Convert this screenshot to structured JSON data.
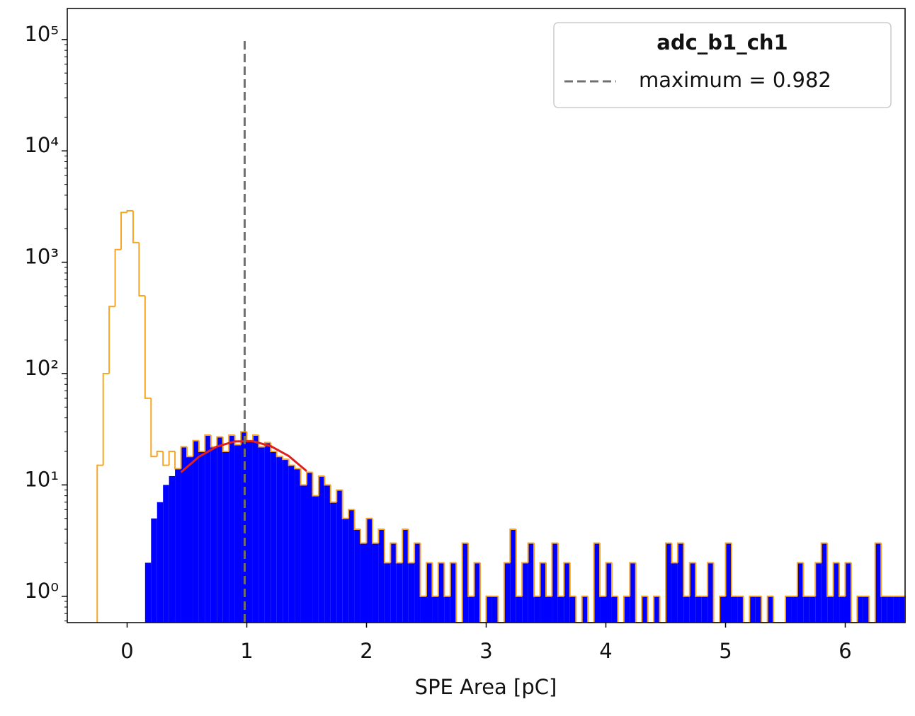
{
  "chart_data": {
    "type": "histogram",
    "xlabel": "SPE Area [pC]",
    "xlim": [
      -0.5,
      6.5
    ],
    "xticks": [
      0,
      1,
      2,
      3,
      4,
      5,
      6
    ],
    "ylim": [
      0.58,
      190000
    ],
    "yscale": "log",
    "yticks": [
      {
        "value": 1,
        "label": "10⁰"
      },
      {
        "value": 10,
        "label": "10¹"
      },
      {
        "value": 100,
        "label": "10²"
      },
      {
        "value": 1000,
        "label": "10³"
      },
      {
        "value": 10000,
        "label": "10⁴"
      },
      {
        "value": 100000,
        "label": "10⁵"
      }
    ],
    "bins": [
      -0.25,
      -0.2,
      -0.15,
      -0.1,
      -0.05,
      0,
      0.05,
      0.1,
      0.15,
      0.2,
      0.25,
      0.3,
      0.35,
      0.4,
      0.45,
      0.5,
      0.55,
      0.6,
      0.65,
      0.7,
      0.75,
      0.8,
      0.85,
      0.9,
      0.95,
      1,
      1.05,
      1.1,
      1.15,
      1.2,
      1.25,
      1.3,
      1.35,
      1.4,
      1.45,
      1.5,
      1.55,
      1.6,
      1.65,
      1.7,
      1.75,
      1.8,
      1.85,
      1.9,
      1.95,
      2,
      2.05,
      2.1,
      2.15,
      2.2,
      2.25,
      2.3,
      2.35,
      2.4,
      2.45,
      2.5,
      2.55,
      2.6,
      2.65,
      2.7,
      2.75,
      2.8,
      2.85,
      2.9,
      2.95,
      3,
      3.05,
      3.1,
      3.15,
      3.2,
      3.25,
      3.3,
      3.35,
      3.4,
      3.45,
      3.5,
      3.55,
      3.6,
      3.65,
      3.7,
      3.75,
      3.8,
      3.85,
      3.9,
      3.95,
      4,
      4.05,
      4.1,
      4.15,
      4.2,
      4.25,
      4.3,
      4.35,
      4.4,
      4.45,
      4.5,
      4.55,
      4.6,
      4.65,
      4.7,
      4.75,
      4.8,
      4.85,
      4.9,
      4.95,
      5,
      5.05,
      5.1,
      5.15,
      5.2,
      5.25,
      5.3,
      5.35,
      5.4,
      5.45,
      5.5,
      5.55,
      5.6,
      5.65,
      5.7,
      5.75,
      5.8,
      5.85,
      5.9,
      5.95,
      6,
      6.05,
      6.1,
      6.15,
      6.2,
      6.25,
      6.3,
      6.35,
      6.4,
      6.45,
      6.5
    ],
    "series": [
      {
        "color": "#0000ff",
        "style": "filled",
        "values": [
          0,
          0,
          0,
          0,
          0,
          0,
          0,
          0,
          2,
          5,
          7,
          10,
          12,
          14,
          22,
          18,
          25,
          20,
          28,
          22,
          27,
          20,
          28,
          23,
          30,
          25,
          28,
          22,
          24,
          20,
          18,
          17,
          15,
          14,
          10,
          13,
          8,
          12,
          10,
          7,
          9,
          5,
          6,
          4,
          3,
          5,
          3,
          4,
          2,
          3,
          2,
          4,
          2,
          3,
          1,
          2,
          1,
          2,
          1,
          2,
          0,
          3,
          1,
          2,
          0,
          1,
          1,
          0,
          2,
          4,
          1,
          2,
          3,
          1,
          2,
          1,
          3,
          1,
          2,
          1,
          0,
          1,
          0,
          3,
          1,
          2,
          1,
          0,
          1,
          2,
          0,
          1,
          0,
          1,
          0,
          3,
          2,
          3,
          1,
          2,
          1,
          1,
          2,
          0,
          1,
          3,
          1,
          1,
          0,
          1,
          1,
          0,
          1,
          0,
          0,
          1,
          1,
          2,
          1,
          1,
          2,
          3,
          1,
          2,
          1,
          2,
          0,
          1,
          1,
          0,
          3,
          1,
          1,
          1,
          1
        ]
      },
      {
        "color": "#f5a623",
        "style": "step",
        "values": [
          15,
          100,
          400,
          1300,
          2800,
          2900,
          1500,
          500,
          60,
          18,
          20,
          15,
          20,
          14,
          22,
          18,
          25,
          20,
          28,
          22,
          27,
          20,
          28,
          23,
          30,
          25,
          28,
          22,
          24,
          20,
          18,
          17,
          15,
          14,
          10,
          13,
          8,
          12,
          10,
          7,
          9,
          5,
          6,
          4,
          3,
          5,
          3,
          4,
          2,
          3,
          2,
          4,
          2,
          3,
          1,
          2,
          1,
          2,
          1,
          2,
          0,
          3,
          1,
          2,
          0,
          1,
          1,
          0,
          2,
          4,
          1,
          2,
          3,
          1,
          2,
          1,
          3,
          1,
          2,
          1,
          0,
          1,
          0,
          3,
          1,
          2,
          1,
          0,
          1,
          2,
          0,
          1,
          0,
          1,
          0,
          3,
          2,
          3,
          1,
          2,
          1,
          1,
          2,
          0,
          1,
          3,
          1,
          1,
          0,
          1,
          1,
          0,
          1,
          0,
          0,
          1,
          1,
          2,
          1,
          1,
          2,
          3,
          1,
          2,
          1,
          2,
          0,
          1,
          1,
          0,
          3,
          1,
          1,
          1,
          1
        ]
      }
    ],
    "fit": {
      "color": "#e02020",
      "x": [
        0.45,
        0.6,
        0.75,
        0.9,
        1.05,
        1.2,
        1.35,
        1.5
      ],
      "values": [
        13.0,
        17.9,
        22.1,
        24.6,
        24.7,
        22.3,
        18.2,
        13.3
      ]
    },
    "vline": {
      "x": 0.982,
      "top": 100000,
      "color": "#707070",
      "label": "maximum = 0.982"
    },
    "legend_title": "adc_b1_ch1",
    "legend": "upper right"
  }
}
